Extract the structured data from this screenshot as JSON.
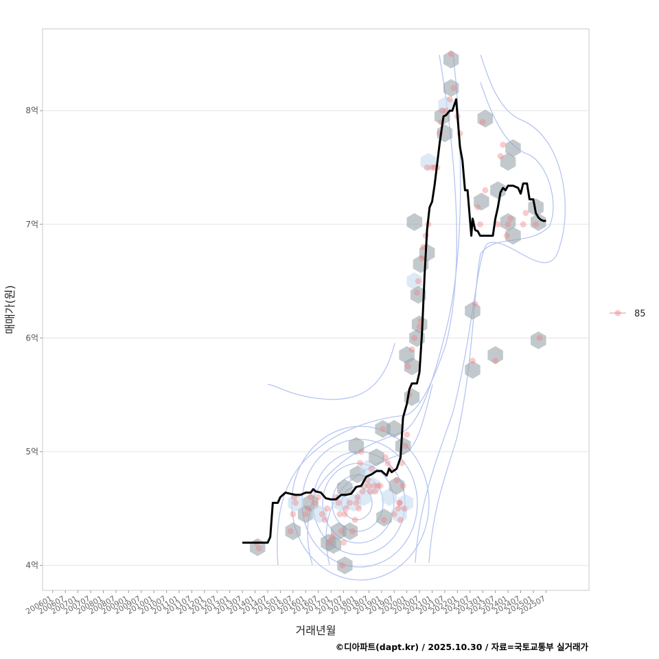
{
  "chart_data": {
    "type": "scatter",
    "title": "",
    "xlabel": "거래년월",
    "ylabel": "매매가(원)",
    "caption": "©디아파트(dapt.kr) / 2025.10.30 / 자료=국토교통부 실거래가",
    "xlim": [
      2005.6,
      2027.2
    ],
    "ylim": [
      3.78,
      8.72
    ],
    "y_ticks": [
      {
        "value": 4,
        "label": "4억"
      },
      {
        "value": 5,
        "label": "5억"
      },
      {
        "value": 6,
        "label": "6억"
      },
      {
        "value": 7,
        "label": "7억"
      },
      {
        "value": 8,
        "label": "8억"
      }
    ],
    "x_ticks": [
      "200601",
      "200607",
      "200701",
      "200707",
      "200801",
      "200807",
      "200901",
      "200907",
      "201001",
      "201007",
      "201101",
      "201107",
      "201201",
      "201207",
      "201301",
      "201307",
      "201401",
      "201407",
      "201501",
      "201507",
      "201601",
      "201607",
      "201701",
      "201707",
      "201801",
      "201807",
      "201901",
      "201907",
      "202001",
      "202007",
      "202101",
      "202107",
      "202201",
      "202207",
      "202301",
      "202307",
      "202401",
      "202407",
      "202501",
      "202507"
    ],
    "legend": [
      {
        "label": "85",
        "color": "#f08080"
      }
    ],
    "colors": {
      "points": "#f08080",
      "hex": "#9aa5ab",
      "hex_light": "#c6dcf0",
      "contour": "#b5c5f2",
      "trend": "#000000",
      "grid": "#e3e3e3",
      "frame": "#c8c8c8"
    },
    "series": [
      {
        "name": "85",
        "points": [
          [
            2014.05,
            4.2
          ],
          [
            2014.15,
            4.15
          ],
          [
            2015.4,
            4.3
          ],
          [
            2015.5,
            4.45
          ],
          [
            2015.55,
            4.6
          ],
          [
            2015.6,
            4.55
          ],
          [
            2016.0,
            4.45
          ],
          [
            2016.1,
            4.5
          ],
          [
            2016.2,
            4.6
          ],
          [
            2016.35,
            4.55
          ],
          [
            2016.5,
            4.6
          ],
          [
            2016.65,
            4.45
          ],
          [
            2016.75,
            4.4
          ],
          [
            2016.85,
            4.5
          ],
          [
            2016.95,
            4.2
          ],
          [
            2017.05,
            4.25
          ],
          [
            2017.2,
            4.6
          ],
          [
            2017.3,
            4.55
          ],
          [
            2017.35,
            4.45
          ],
          [
            2017.4,
            4.3
          ],
          [
            2017.45,
            4.0
          ],
          [
            2017.5,
            4.2
          ],
          [
            2017.55,
            4.45
          ],
          [
            2017.6,
            4.5
          ],
          [
            2017.75,
            4.55
          ],
          [
            2017.85,
            4.3
          ],
          [
            2017.95,
            4.4
          ],
          [
            2018.0,
            4.55
          ],
          [
            2018.05,
            4.6
          ],
          [
            2018.1,
            4.5
          ],
          [
            2018.15,
            4.9
          ],
          [
            2018.2,
            5.0
          ],
          [
            2018.25,
            4.65
          ],
          [
            2018.3,
            4.7
          ],
          [
            2018.45,
            4.75
          ],
          [
            2018.5,
            4.7
          ],
          [
            2018.55,
            4.65
          ],
          [
            2018.6,
            4.85
          ],
          [
            2018.7,
            4.7
          ],
          [
            2018.75,
            4.65
          ],
          [
            2018.85,
            4.7
          ],
          [
            2018.95,
            4.7
          ],
          [
            2019.05,
            5.2
          ],
          [
            2019.1,
            4.4
          ],
          [
            2019.15,
            4.95
          ],
          [
            2019.25,
            4.9
          ],
          [
            2019.35,
            4.85
          ],
          [
            2019.5,
            4.45
          ],
          [
            2019.6,
            4.75
          ],
          [
            2019.65,
            4.5
          ],
          [
            2019.7,
            4.55
          ],
          [
            2019.72,
            4.55
          ],
          [
            2019.75,
            4.4
          ],
          [
            2019.8,
            4.9
          ],
          [
            2019.85,
            4.7
          ],
          [
            2019.9,
            4.5
          ],
          [
            2019.95,
            5.05
          ],
          [
            2020.0,
            5.15
          ],
          [
            2020.1,
            5.5
          ],
          [
            2020.05,
            5.75
          ],
          [
            2020.2,
            5.9
          ],
          [
            2020.3,
            6.0
          ],
          [
            2020.4,
            6.4
          ],
          [
            2020.45,
            6.5
          ],
          [
            2020.5,
            6.1
          ],
          [
            2020.55,
            6.15
          ],
          [
            2020.6,
            6.7
          ],
          [
            2020.65,
            6.8
          ],
          [
            2020.75,
            6.9
          ],
          [
            2020.8,
            7.5
          ],
          [
            2020.85,
            7.0
          ],
          [
            2021.0,
            7.5
          ],
          [
            2021.1,
            7.5
          ],
          [
            2021.2,
            7.5
          ],
          [
            2021.3,
            7.8
          ],
          [
            2021.35,
            7.9
          ],
          [
            2021.4,
            8.0
          ],
          [
            2021.55,
            8.0
          ],
          [
            2021.7,
            8.1
          ],
          [
            2021.75,
            8.5
          ],
          [
            2021.85,
            8.2
          ],
          [
            2022.0,
            7.95
          ],
          [
            2022.1,
            7.8
          ],
          [
            2022.6,
            5.8
          ],
          [
            2022.7,
            6.3
          ],
          [
            2022.8,
            7.15
          ],
          [
            2022.9,
            7.0
          ],
          [
            2023.0,
            7.9
          ],
          [
            2023.1,
            7.3
          ],
          [
            2023.5,
            5.8
          ],
          [
            2023.6,
            7.0
          ],
          [
            2023.7,
            7.6
          ],
          [
            2023.8,
            7.7
          ],
          [
            2023.95,
            6.9
          ],
          [
            2024.0,
            7.0
          ],
          [
            2024.1,
            7.05
          ],
          [
            2024.6,
            7.0
          ],
          [
            2024.7,
            7.1
          ],
          [
            2025.1,
            7.0
          ],
          [
            2025.25,
            6.0
          ]
        ],
        "hexbins": [
          [
            2014.1,
            4.16,
            "d"
          ],
          [
            2015.5,
            4.3,
            "d"
          ],
          [
            2015.6,
            4.55,
            "l"
          ],
          [
            2016.0,
            4.45,
            "d"
          ],
          [
            2016.2,
            4.55,
            "d"
          ],
          [
            2016.55,
            4.45,
            "l"
          ],
          [
            2016.9,
            4.2,
            "d"
          ],
          [
            2017.3,
            4.3,
            "d"
          ],
          [
            2017.1,
            4.18,
            "d"
          ],
          [
            2017.55,
            4.0,
            "d"
          ],
          [
            2017.4,
            4.55,
            "l"
          ],
          [
            2017.75,
            4.3,
            "d"
          ],
          [
            2017.55,
            4.68,
            "d"
          ],
          [
            2017.9,
            4.55,
            "l"
          ],
          [
            2018.05,
            4.8,
            "d"
          ],
          [
            2018.0,
            5.05,
            "d"
          ],
          [
            2018.3,
            4.6,
            "l"
          ],
          [
            2018.45,
            4.85,
            "l"
          ],
          [
            2018.65,
            4.7,
            "l"
          ],
          [
            2018.8,
            4.95,
            "d"
          ],
          [
            2019.1,
            4.42,
            "d"
          ],
          [
            2019.05,
            5.2,
            "d"
          ],
          [
            2019.3,
            4.6,
            "l"
          ],
          [
            2019.5,
            5.2,
            "d"
          ],
          [
            2019.6,
            4.7,
            "d"
          ],
          [
            2019.7,
            4.45,
            "l"
          ],
          [
            2019.85,
            5.05,
            "d"
          ],
          [
            2019.95,
            4.55,
            "l"
          ],
          [
            2020.0,
            5.85,
            "d"
          ],
          [
            2020.2,
            5.75,
            "d"
          ],
          [
            2020.2,
            5.48,
            "d"
          ],
          [
            2020.3,
            6.5,
            "l"
          ],
          [
            2020.3,
            7.02,
            "d"
          ],
          [
            2020.4,
            6.0,
            "d"
          ],
          [
            2020.5,
            6.12,
            "d"
          ],
          [
            2020.45,
            6.38,
            "d"
          ],
          [
            2020.55,
            6.65,
            "d"
          ],
          [
            2020.8,
            6.75,
            "d"
          ],
          [
            2020.85,
            7.55,
            "l"
          ],
          [
            2021.4,
            7.95,
            "d"
          ],
          [
            2021.55,
            8.05,
            "l"
          ],
          [
            2021.5,
            7.8,
            "d"
          ],
          [
            2021.75,
            8.2,
            "d"
          ],
          [
            2021.75,
            8.45,
            "d"
          ],
          [
            2022.6,
            5.72,
            "d"
          ],
          [
            2022.6,
            6.24,
            "d"
          ],
          [
            2022.95,
            7.2,
            "d"
          ],
          [
            2023.1,
            7.93,
            "d"
          ],
          [
            2023.5,
            5.85,
            "d"
          ],
          [
            2023.6,
            7.3,
            "d"
          ],
          [
            2024.0,
            7.55,
            "d"
          ],
          [
            2024.2,
            7.67,
            "d"
          ],
          [
            2024.0,
            7.02,
            "d"
          ],
          [
            2024.2,
            6.9,
            "d"
          ],
          [
            2025.1,
            7.15,
            "d"
          ],
          [
            2025.2,
            7.02,
            "d"
          ],
          [
            2025.2,
            5.98,
            "d"
          ]
        ],
        "trend_line": [
          [
            2013.5,
            4.2
          ],
          [
            2013.7,
            4.2
          ],
          [
            2013.9,
            4.2
          ],
          [
            2014.1,
            4.2
          ],
          [
            2014.3,
            4.2
          ],
          [
            2014.5,
            4.2
          ],
          [
            2014.6,
            4.25
          ],
          [
            2014.7,
            4.55
          ],
          [
            2014.9,
            4.55
          ],
          [
            2015.0,
            4.6
          ],
          [
            2015.2,
            4.64
          ],
          [
            2015.4,
            4.63
          ],
          [
            2015.6,
            4.62
          ],
          [
            2015.8,
            4.62
          ],
          [
            2016.0,
            4.64
          ],
          [
            2016.2,
            4.64
          ],
          [
            2016.3,
            4.67
          ],
          [
            2016.4,
            4.65
          ],
          [
            2016.6,
            4.64
          ],
          [
            2016.8,
            4.59
          ],
          [
            2017.0,
            4.58
          ],
          [
            2017.2,
            4.58
          ],
          [
            2017.4,
            4.62
          ],
          [
            2017.6,
            4.62
          ],
          [
            2017.8,
            4.63
          ],
          [
            2018.0,
            4.69
          ],
          [
            2018.2,
            4.7
          ],
          [
            2018.4,
            4.78
          ],
          [
            2018.6,
            4.8
          ],
          [
            2018.8,
            4.83
          ],
          [
            2019.0,
            4.83
          ],
          [
            2019.2,
            4.79
          ],
          [
            2019.3,
            4.85
          ],
          [
            2019.4,
            4.82
          ],
          [
            2019.6,
            4.85
          ],
          [
            2019.75,
            4.95
          ],
          [
            2019.85,
            5.3
          ],
          [
            2020.0,
            5.42
          ],
          [
            2020.1,
            5.55
          ],
          [
            2020.2,
            5.6
          ],
          [
            2020.4,
            5.6
          ],
          [
            2020.5,
            5.7
          ],
          [
            2020.6,
            6.05
          ],
          [
            2020.7,
            6.55
          ],
          [
            2020.8,
            6.95
          ],
          [
            2020.9,
            7.15
          ],
          [
            2021.0,
            7.2
          ],
          [
            2021.1,
            7.35
          ],
          [
            2021.3,
            7.72
          ],
          [
            2021.45,
            7.95
          ],
          [
            2021.55,
            7.96
          ],
          [
            2021.7,
            8.0
          ],
          [
            2021.8,
            8.0
          ],
          [
            2021.95,
            8.1
          ],
          [
            2022.1,
            7.68
          ],
          [
            2022.2,
            7.56
          ],
          [
            2022.3,
            7.3
          ],
          [
            2022.4,
            7.3
          ],
          [
            2022.55,
            6.9
          ],
          [
            2022.6,
            7.05
          ],
          [
            2022.7,
            6.95
          ],
          [
            2022.8,
            6.94
          ],
          [
            2022.9,
            6.9
          ],
          [
            2023.0,
            6.9
          ],
          [
            2023.2,
            6.9
          ],
          [
            2023.4,
            6.9
          ],
          [
            2023.5,
            7.05
          ],
          [
            2023.6,
            7.15
          ],
          [
            2023.7,
            7.28
          ],
          [
            2023.8,
            7.32
          ],
          [
            2023.9,
            7.3
          ],
          [
            2024.0,
            7.34
          ],
          [
            2024.2,
            7.34
          ],
          [
            2024.4,
            7.32
          ],
          [
            2024.5,
            7.27
          ],
          [
            2024.6,
            7.36
          ],
          [
            2024.75,
            7.36
          ],
          [
            2024.85,
            7.22
          ],
          [
            2025.0,
            7.22
          ],
          [
            2025.1,
            7.1
          ],
          [
            2025.2,
            7.06
          ],
          [
            2025.3,
            7.04
          ],
          [
            2025.4,
            7.03
          ],
          [
            2025.5,
            7.03
          ]
        ]
      }
    ]
  }
}
